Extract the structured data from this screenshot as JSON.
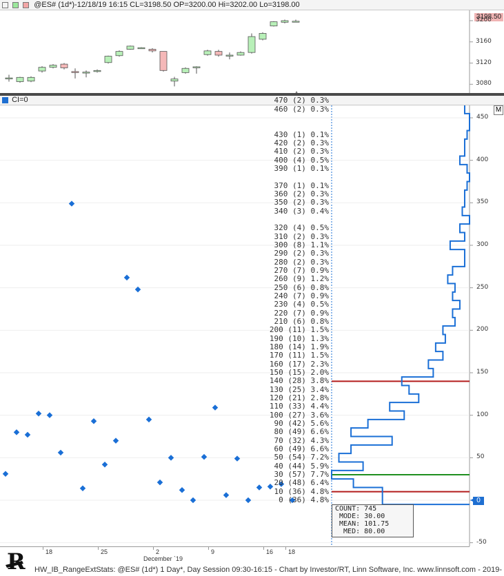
{
  "top_panel": {
    "title": "@ES# (1d*)-12/18/19 16:15 CL=3198.50 OP=3200.00 Hi=3202.00 Lo=3198.00",
    "price_tag": "3198.50",
    "y_labels": [
      "3200",
      "3160",
      "3120",
      "3080"
    ],
    "colors": {
      "up": "#b8f0b8",
      "down": "#f5b8b8"
    }
  },
  "ci_panel": {
    "title": "CI=0",
    "m_label": "M",
    "zero_tag": "0",
    "y_labels": [
      "450",
      "400",
      "350",
      "300",
      "250",
      "200",
      "150",
      "100",
      "50",
      "0",
      "-50"
    ]
  },
  "histogram_labels": [
    "470 (2) 0.3%",
    "460 (2) 0.3%",
    "430 (1) 0.1%",
    "420 (2) 0.3%",
    "410 (2) 0.3%",
    "400 (4) 0.5%",
    "390 (1) 0.1%",
    "370 (1) 0.1%",
    "360 (2) 0.3%",
    "350 (2) 0.3%",
    "340 (3) 0.4%",
    "320 (4) 0.5%",
    "310 (2) 0.3%",
    "300 (8) 1.1%",
    "290 (2) 0.3%",
    "280 (2) 0.3%",
    "270 (7) 0.9%",
    "260 (9) 1.2%",
    "250 (6) 0.8%",
    "240 (7) 0.9%",
    "230 (4) 0.5%",
    "220 (7) 0.9%",
    "210 (6) 0.8%",
    "200 (11) 1.5%",
    "190 (10) 1.3%",
    "180 (14) 1.9%",
    "170 (11) 1.5%",
    "160 (17) 2.3%",
    "150 (15) 2.0%",
    "140 (28) 3.8%",
    "130 (25) 3.4%",
    "120 (21) 2.8%",
    "110 (33) 4.4%",
    "100 (27) 3.6%",
    "90 (42) 5.6%",
    "80 (49) 6.6%",
    "70 (32) 4.3%",
    "60 (49) 6.6%",
    "50 (54) 7.2%",
    "40 (44) 5.9%",
    "30 (57) 7.7%",
    "20 (48) 6.4%",
    "10 (36) 4.8%",
    "0 (36) 4.8%"
  ],
  "stats": {
    "count": "COUNT: 745",
    "mode": " MODE: 30.00",
    "mean": " MEAN: 101.75",
    "med": "  MED: 80.00"
  },
  "x_labels": [
    "18",
    "25",
    "2",
    "9",
    "16",
    "18"
  ],
  "x_month": "December `19",
  "footer": "HW_IB_RangeExtStats: @ES# (1d*) 1 Day*, Day Session 09:30-16:15 - Chart by Investor/RT, Linn Software, Inc. www.linnsoft.com - 2019-",
  "logo_text": "R",
  "colors": {
    "histogram": "#1a6fd6",
    "dots": "#1a6fd6",
    "line_140": "#b31b1b",
    "line_30": "#1e8f1e",
    "line_10": "#b31b1b"
  }
}
